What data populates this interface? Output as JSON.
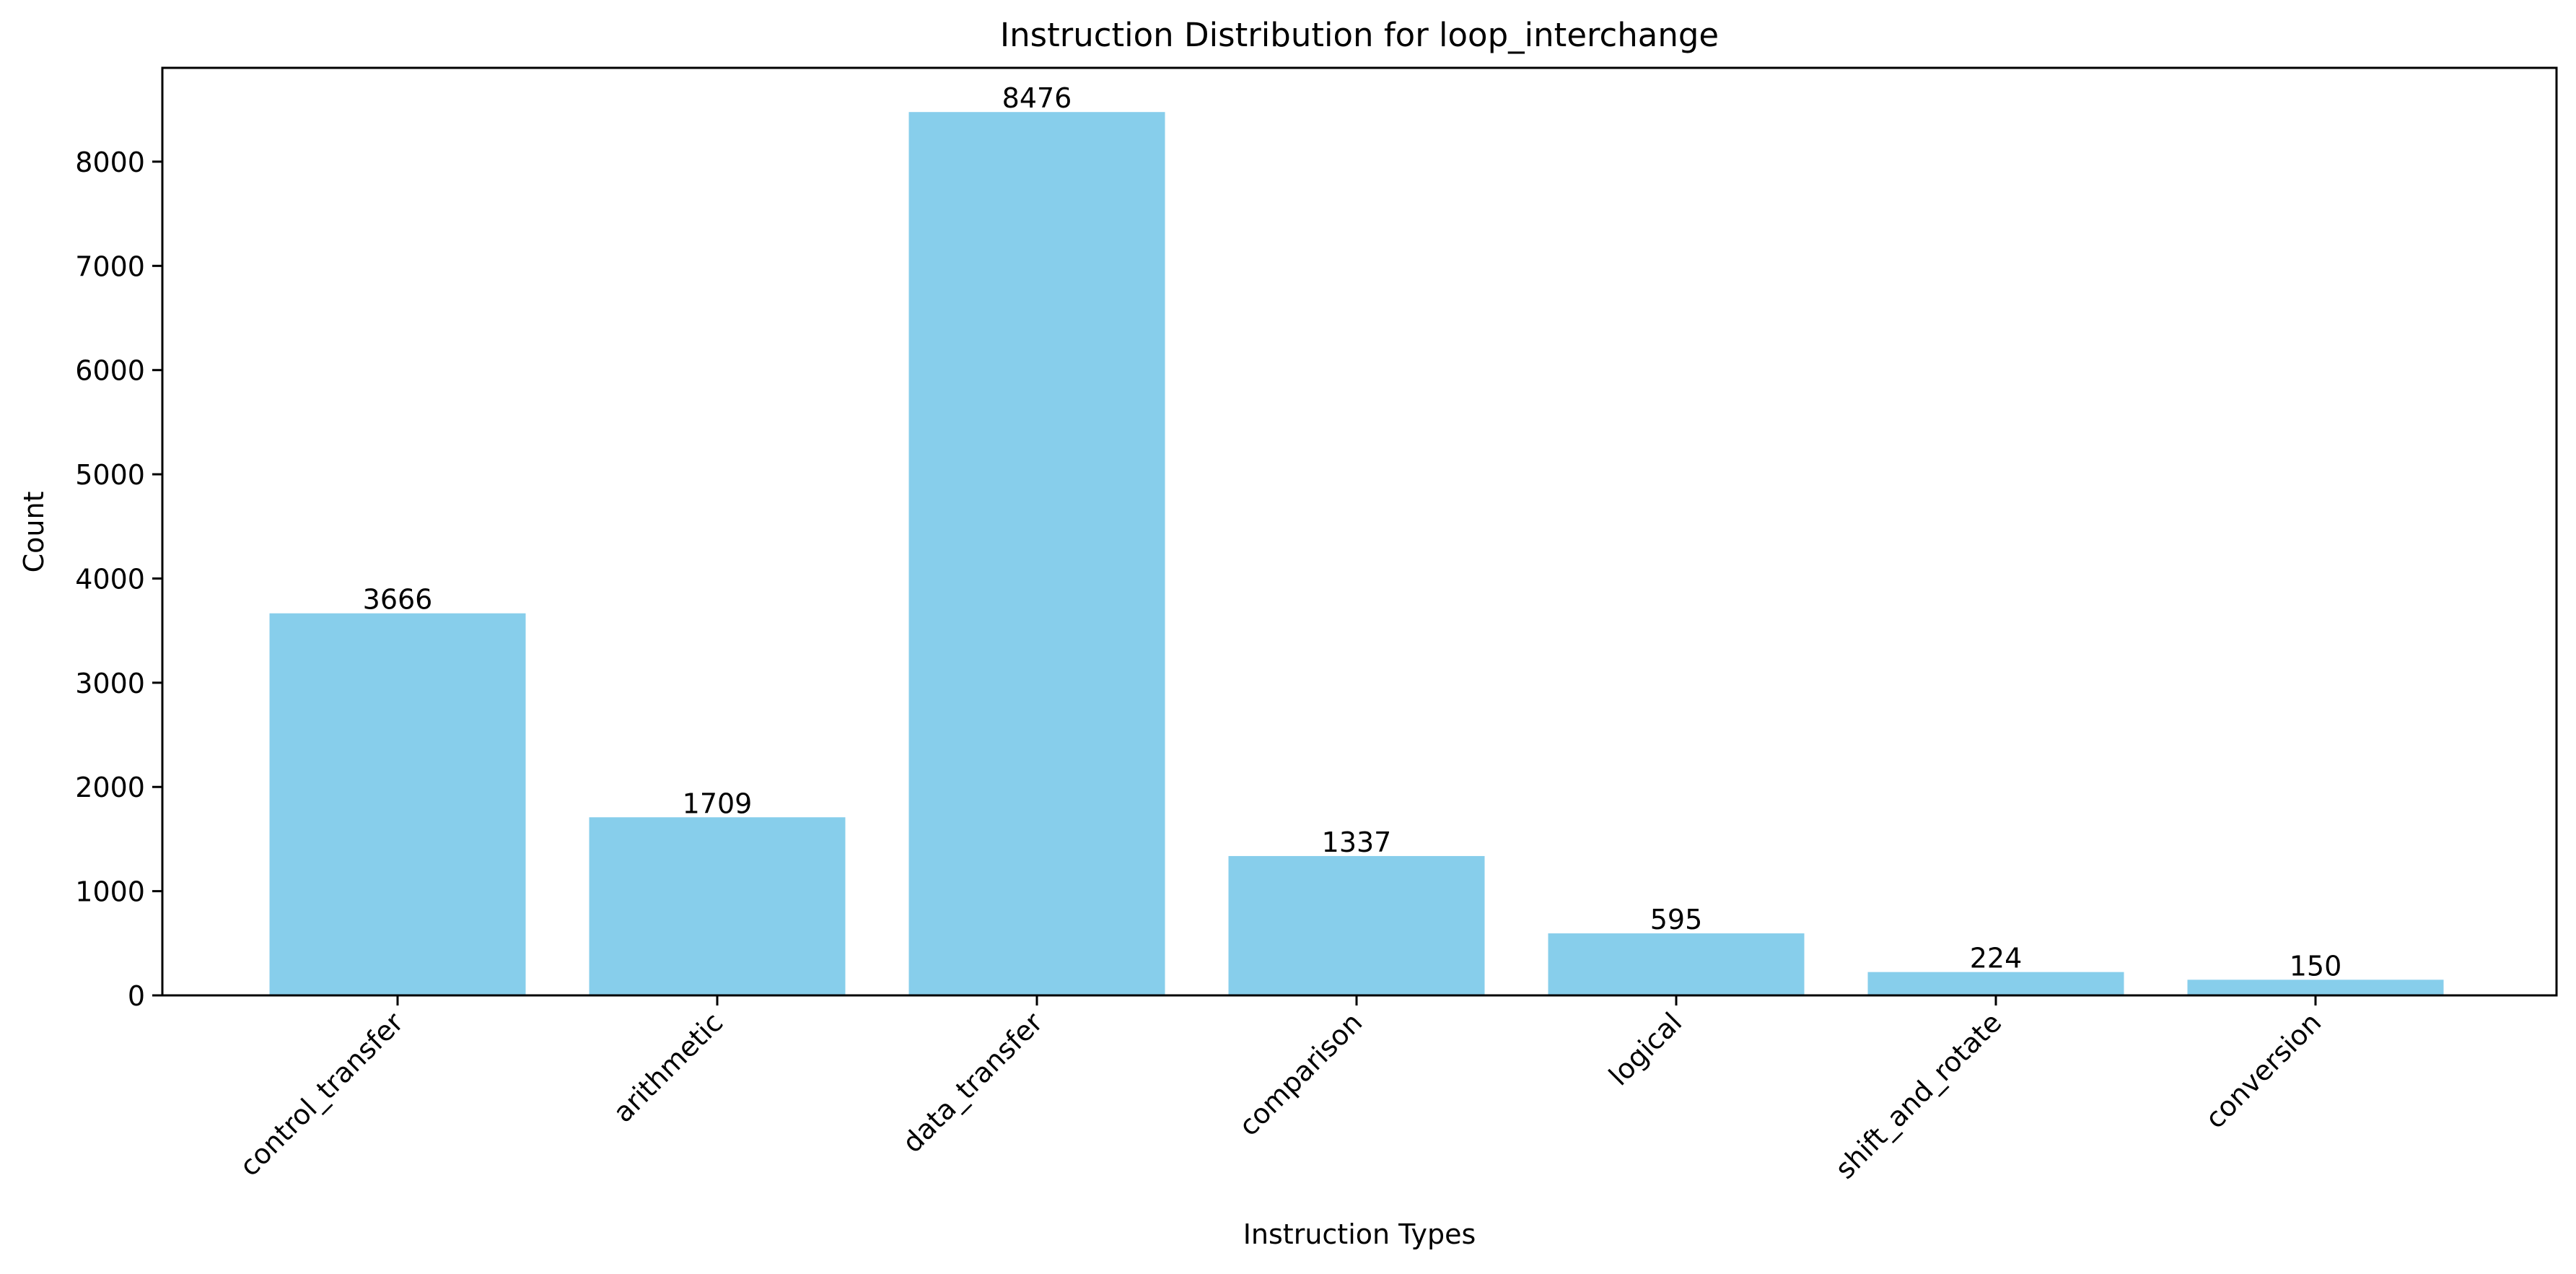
{
  "chart_data": {
    "type": "bar",
    "title": "Instruction Distribution for loop_interchange",
    "xlabel": "Instruction Types",
    "ylabel": "Count",
    "categories": [
      "control_transfer",
      "arithmetic",
      "data_transfer",
      "comparison",
      "logical",
      "shift_and_rotate",
      "conversion"
    ],
    "values": [
      3666,
      1709,
      8476,
      1337,
      595,
      224,
      150
    ],
    "value_labels": [
      "3666",
      "1709",
      "8476",
      "1337",
      "595",
      "224",
      "150"
    ],
    "ylim": [
      0,
      8900
    ],
    "yticks": [
      0,
      1000,
      2000,
      3000,
      4000,
      5000,
      6000,
      7000,
      8000
    ],
    "ytick_labels": [
      "0",
      "1000",
      "2000",
      "3000",
      "4000",
      "5000",
      "6000",
      "7000",
      "8000"
    ],
    "grid": false,
    "legend": "none",
    "bar_color": "#87ceeb"
  }
}
